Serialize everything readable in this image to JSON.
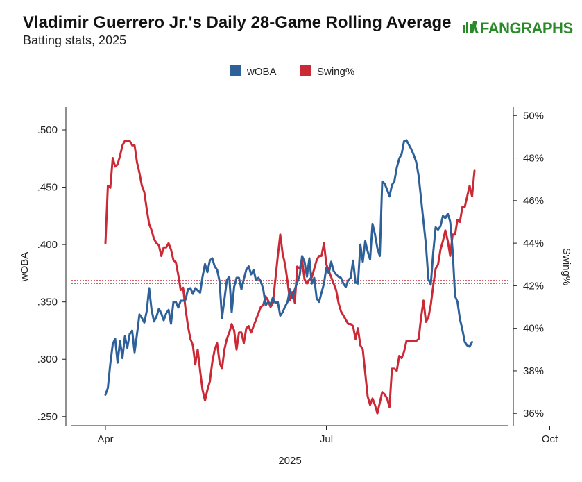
{
  "chart_data": {
    "type": "line",
    "title": "Vladimir Guerrero Jr.'s Daily 28-Game Rolling Average",
    "subtitle": "Batting stats, 2025",
    "source_logo": {
      "text": "FANGRAPHS",
      "color": "#2a8a2a"
    },
    "xlabel": "2025",
    "x_ticks": [
      "Apr",
      "Jul",
      "Oct"
    ],
    "y_left": {
      "label": "wOBA",
      "ticks": [
        ".250",
        ".300",
        ".350",
        ".400",
        ".450",
        ".500"
      ],
      "range": [
        0.242,
        0.52
      ]
    },
    "y_right": {
      "label": "Swing%",
      "ticks": [
        "36%",
        "38%",
        "40%",
        "42%",
        "44%",
        "46%",
        "48%",
        "50%"
      ],
      "range": [
        0.3542,
        0.504
      ]
    },
    "legend": {
      "position": "top-center"
    },
    "colors": {
      "woba": "#2e6199",
      "swing": "#cc2936"
    },
    "reference_lines": {
      "woba_avg": 0.366,
      "swing_avg": 0.4225
    },
    "series": [
      {
        "name": "wOBA",
        "key": "woba",
        "axis": "left",
        "points": [
          [
            0,
            0.269
          ],
          [
            1,
            0.275
          ],
          [
            2,
            0.296
          ],
          [
            3,
            0.313
          ],
          [
            4,
            0.318
          ],
          [
            5,
            0.297
          ],
          [
            6,
            0.316
          ],
          [
            7,
            0.301
          ],
          [
            8,
            0.32
          ],
          [
            9,
            0.31
          ],
          [
            10,
            0.322
          ],
          [
            11,
            0.325
          ],
          [
            12,
            0.306
          ],
          [
            13,
            0.322
          ],
          [
            14,
            0.339
          ],
          [
            15,
            0.336
          ],
          [
            16,
            0.332
          ],
          [
            17,
            0.342
          ],
          [
            18,
            0.362
          ],
          [
            19,
            0.343
          ],
          [
            20,
            0.333
          ],
          [
            21,
            0.337
          ],
          [
            22,
            0.344
          ],
          [
            23,
            0.34
          ],
          [
            24,
            0.334
          ],
          [
            25,
            0.34
          ],
          [
            26,
            0.343
          ],
          [
            27,
            0.331
          ],
          [
            28,
            0.35
          ],
          [
            29,
            0.35
          ],
          [
            30,
            0.345
          ],
          [
            31,
            0.351
          ],
          [
            32,
            0.351
          ],
          [
            33,
            0.352
          ],
          [
            34,
            0.361
          ],
          [
            35,
            0.362
          ],
          [
            36,
            0.357
          ],
          [
            37,
            0.362
          ],
          [
            38,
            0.36
          ],
          [
            39,
            0.358
          ],
          [
            40,
            0.372
          ],
          [
            41,
            0.383
          ],
          [
            42,
            0.376
          ],
          [
            43,
            0.386
          ],
          [
            44,
            0.388
          ],
          [
            45,
            0.381
          ],
          [
            46,
            0.378
          ],
          [
            47,
            0.368
          ],
          [
            48,
            0.336
          ],
          [
            49,
            0.352
          ],
          [
            50,
            0.369
          ],
          [
            51,
            0.372
          ],
          [
            52,
            0.341
          ],
          [
            53,
            0.363
          ],
          [
            54,
            0.371
          ],
          [
            55,
            0.371
          ],
          [
            56,
            0.361
          ],
          [
            57,
            0.37
          ],
          [
            58,
            0.378
          ],
          [
            59,
            0.381
          ],
          [
            60,
            0.374
          ],
          [
            61,
            0.378
          ],
          [
            62,
            0.369
          ],
          [
            63,
            0.371
          ],
          [
            64,
            0.368
          ],
          [
            65,
            0.361
          ],
          [
            66,
            0.347
          ],
          [
            67,
            0.35
          ],
          [
            68,
            0.348
          ],
          [
            69,
            0.354
          ],
          [
            70,
            0.349
          ],
          [
            71,
            0.35
          ],
          [
            72,
            0.338
          ],
          [
            73,
            0.341
          ],
          [
            74,
            0.346
          ],
          [
            75,
            0.35
          ],
          [
            76,
            0.361
          ],
          [
            77,
            0.353
          ],
          [
            78,
            0.361
          ],
          [
            79,
            0.367
          ],
          [
            80,
            0.373
          ],
          [
            81,
            0.39
          ],
          [
            82,
            0.385
          ],
          [
            83,
            0.372
          ],
          [
            84,
            0.388
          ],
          [
            85,
            0.366
          ],
          [
            86,
            0.371
          ],
          [
            87,
            0.353
          ],
          [
            88,
            0.35
          ],
          [
            89,
            0.358
          ],
          [
            90,
            0.366
          ],
          [
            91,
            0.38
          ],
          [
            92,
            0.375
          ],
          [
            93,
            0.385
          ],
          [
            94,
            0.377
          ],
          [
            95,
            0.374
          ],
          [
            96,
            0.372
          ],
          [
            97,
            0.371
          ],
          [
            98,
            0.366
          ],
          [
            99,
            0.363
          ],
          [
            100,
            0.369
          ],
          [
            101,
            0.371
          ],
          [
            102,
            0.386
          ],
          [
            103,
            0.367
          ],
          [
            104,
            0.366
          ],
          [
            105,
            0.4
          ],
          [
            106,
            0.385
          ],
          [
            107,
            0.403
          ],
          [
            108,
            0.394
          ],
          [
            109,
            0.387
          ],
          [
            110,
            0.418
          ],
          [
            111,
            0.409
          ],
          [
            112,
            0.397
          ],
          [
            113,
            0.39
          ],
          [
            114,
            0.455
          ],
          [
            115,
            0.453
          ],
          [
            116,
            0.448
          ],
          [
            117,
            0.442
          ],
          [
            118,
            0.452
          ],
          [
            119,
            0.455
          ],
          [
            120,
            0.467
          ],
          [
            121,
            0.475
          ],
          [
            122,
            0.479
          ],
          [
            123,
            0.49
          ],
          [
            124,
            0.491
          ],
          [
            125,
            0.487
          ],
          [
            126,
            0.483
          ],
          [
            127,
            0.478
          ],
          [
            128,
            0.472
          ],
          [
            129,
            0.46
          ],
          [
            130,
            0.44
          ],
          [
            131,
            0.42
          ],
          [
            132,
            0.4
          ],
          [
            133,
            0.37
          ],
          [
            134,
            0.365
          ],
          [
            135,
            0.393
          ],
          [
            136,
            0.415
          ],
          [
            137,
            0.413
          ],
          [
            138,
            0.416
          ],
          [
            139,
            0.425
          ],
          [
            140,
            0.423
          ],
          [
            141,
            0.427
          ],
          [
            142,
            0.42
          ],
          [
            143,
            0.395
          ],
          [
            144,
            0.355
          ],
          [
            145,
            0.35
          ],
          [
            146,
            0.335
          ],
          [
            147,
            0.326
          ],
          [
            148,
            0.315
          ],
          [
            149,
            0.312
          ],
          [
            150,
            0.311
          ],
          [
            151,
            0.315
          ]
        ]
      },
      {
        "name": "Swing%",
        "key": "swing",
        "axis": "right",
        "points": [
          [
            0,
            0.44
          ],
          [
            1,
            0.467
          ],
          [
            2,
            0.466
          ],
          [
            3,
            0.48
          ],
          [
            4,
            0.476
          ],
          [
            5,
            0.477
          ],
          [
            6,
            0.481
          ],
          [
            7,
            0.486
          ],
          [
            8,
            0.488
          ],
          [
            9,
            0.488
          ],
          [
            10,
            0.488
          ],
          [
            11,
            0.486
          ],
          [
            12,
            0.486
          ],
          [
            13,
            0.478
          ],
          [
            14,
            0.473
          ],
          [
            15,
            0.467
          ],
          [
            16,
            0.464
          ],
          [
            17,
            0.456
          ],
          [
            18,
            0.449
          ],
          [
            19,
            0.446
          ],
          [
            20,
            0.442
          ],
          [
            21,
            0.44
          ],
          [
            22,
            0.439
          ],
          [
            23,
            0.434
          ],
          [
            24,
            0.438
          ],
          [
            25,
            0.438
          ],
          [
            26,
            0.44
          ],
          [
            27,
            0.437
          ],
          [
            28,
            0.432
          ],
          [
            29,
            0.431
          ],
          [
            30,
            0.425
          ],
          [
            31,
            0.418
          ],
          [
            32,
            0.419
          ],
          [
            33,
            0.409
          ],
          [
            34,
            0.401
          ],
          [
            35,
            0.395
          ],
          [
            36,
            0.392
          ],
          [
            37,
            0.383
          ],
          [
            38,
            0.39
          ],
          [
            39,
            0.38
          ],
          [
            40,
            0.371
          ],
          [
            41,
            0.366
          ],
          [
            42,
            0.371
          ],
          [
            43,
            0.375
          ],
          [
            44,
            0.384
          ],
          [
            45,
            0.39
          ],
          [
            46,
            0.393
          ],
          [
            47,
            0.384
          ],
          [
            48,
            0.381
          ],
          [
            49,
            0.39
          ],
          [
            50,
            0.395
          ],
          [
            51,
            0.398
          ],
          [
            52,
            0.402
          ],
          [
            53,
            0.399
          ],
          [
            54,
            0.39
          ],
          [
            55,
            0.398
          ],
          [
            56,
            0.398
          ],
          [
            57,
            0.393
          ],
          [
            58,
            0.4
          ],
          [
            59,
            0.401
          ],
          [
            60,
            0.398
          ],
          [
            61,
            0.401
          ],
          [
            62,
            0.404
          ],
          [
            63,
            0.407
          ],
          [
            64,
            0.41
          ],
          [
            65,
            0.411
          ],
          [
            66,
            0.415
          ],
          [
            67,
            0.413
          ],
          [
            68,
            0.41
          ],
          [
            69,
            0.412
          ],
          [
            70,
            0.423
          ],
          [
            71,
            0.434
          ],
          [
            72,
            0.444
          ],
          [
            73,
            0.435
          ],
          [
            74,
            0.43
          ],
          [
            75,
            0.422
          ],
          [
            76,
            0.413
          ],
          [
            77,
            0.417
          ],
          [
            78,
            0.412
          ],
          [
            79,
            0.429
          ],
          [
            80,
            0.428
          ],
          [
            81,
            0.432
          ],
          [
            82,
            0.423
          ],
          [
            83,
            0.421
          ],
          [
            84,
            0.423
          ],
          [
            85,
            0.424
          ],
          [
            86,
            0.428
          ],
          [
            87,
            0.432
          ],
          [
            88,
            0.434
          ],
          [
            89,
            0.434
          ],
          [
            90,
            0.44
          ],
          [
            91,
            0.43
          ],
          [
            92,
            0.427
          ],
          [
            93,
            0.424
          ],
          [
            94,
            0.421
          ],
          [
            95,
            0.418
          ],
          [
            96,
            0.412
          ],
          [
            97,
            0.408
          ],
          [
            98,
            0.406
          ],
          [
            99,
            0.404
          ],
          [
            100,
            0.402
          ],
          [
            101,
            0.402
          ],
          [
            102,
            0.401
          ],
          [
            103,
            0.395
          ],
          [
            104,
            0.4
          ],
          [
            105,
            0.392
          ],
          [
            106,
            0.39
          ],
          [
            107,
            0.379
          ],
          [
            108,
            0.368
          ],
          [
            109,
            0.364
          ],
          [
            110,
            0.367
          ],
          [
            111,
            0.364
          ],
          [
            112,
            0.36
          ],
          [
            113,
            0.365
          ],
          [
            114,
            0.37
          ],
          [
            115,
            0.369
          ],
          [
            116,
            0.367
          ],
          [
            117,
            0.363
          ],
          [
            118,
            0.381
          ],
          [
            119,
            0.381
          ],
          [
            120,
            0.38
          ],
          [
            121,
            0.387
          ],
          [
            122,
            0.386
          ],
          [
            123,
            0.389
          ],
          [
            124,
            0.394
          ],
          [
            125,
            0.394
          ],
          [
            126,
            0.394
          ],
          [
            127,
            0.394
          ],
          [
            128,
            0.394
          ],
          [
            129,
            0.395
          ],
          [
            130,
            0.405
          ],
          [
            131,
            0.413
          ],
          [
            132,
            0.403
          ],
          [
            133,
            0.405
          ],
          [
            134,
            0.411
          ],
          [
            135,
            0.42
          ],
          [
            136,
            0.428
          ],
          [
            137,
            0.43
          ],
          [
            138,
            0.437
          ],
          [
            139,
            0.441
          ],
          [
            140,
            0.446
          ],
          [
            141,
            0.441
          ],
          [
            142,
            0.434
          ],
          [
            143,
            0.444
          ],
          [
            144,
            0.444
          ],
          [
            145,
            0.451
          ],
          [
            146,
            0.45
          ],
          [
            147,
            0.457
          ],
          [
            148,
            0.457
          ],
          [
            149,
            0.462
          ],
          [
            150,
            0.467
          ],
          [
            151,
            0.462
          ],
          [
            152,
            0.474
          ]
        ]
      }
    ]
  }
}
